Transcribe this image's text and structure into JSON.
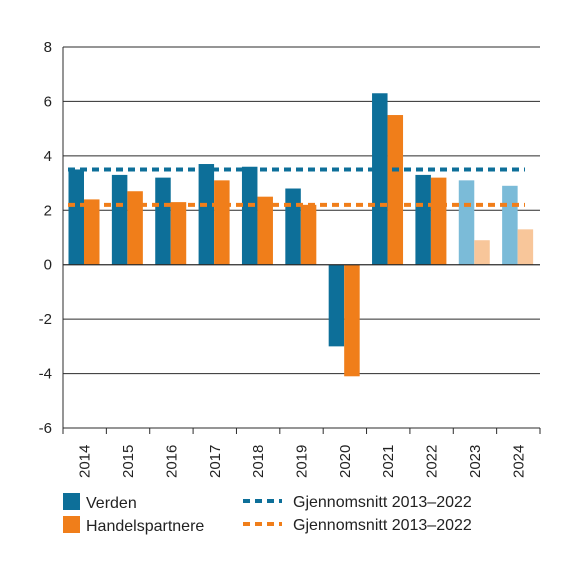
{
  "chart_data": {
    "type": "bar",
    "categories": [
      "2014",
      "2015",
      "2016",
      "2017",
      "2018",
      "2019",
      "2020",
      "2021",
      "2022",
      "2023",
      "2024"
    ],
    "series": [
      {
        "name": "Verden",
        "color": "#0d6f99",
        "forecast_color": "#7bbbd8",
        "values": [
          3.5,
          3.3,
          3.2,
          3.7,
          3.6,
          2.8,
          -3.0,
          6.3,
          3.3,
          3.1,
          2.9
        ]
      },
      {
        "name": "Handelspartnere",
        "color": "#f07e1a",
        "forecast_color": "#f8c69a",
        "values": [
          2.4,
          2.7,
          2.3,
          3.1,
          2.5,
          2.2,
          -4.1,
          5.5,
          3.2,
          0.9,
          1.3
        ]
      }
    ],
    "forecast_categories": [
      "2023",
      "2024"
    ],
    "reference_lines": [
      {
        "name": "Gjennomsnitt 2013–2022",
        "value": 3.5,
        "color": "#0d6f99",
        "style": "dashed"
      },
      {
        "name": "Gjennomsnitt 2013–2022",
        "value": 2.2,
        "color": "#f07e1a",
        "style": "dashed"
      }
    ],
    "y_ticks": [
      "8",
      "6",
      "4",
      "2",
      "0",
      "-2",
      "-4",
      "-6"
    ],
    "ylim": [
      -6,
      8
    ],
    "grid": "horizontal",
    "legend_position": "bottom"
  }
}
